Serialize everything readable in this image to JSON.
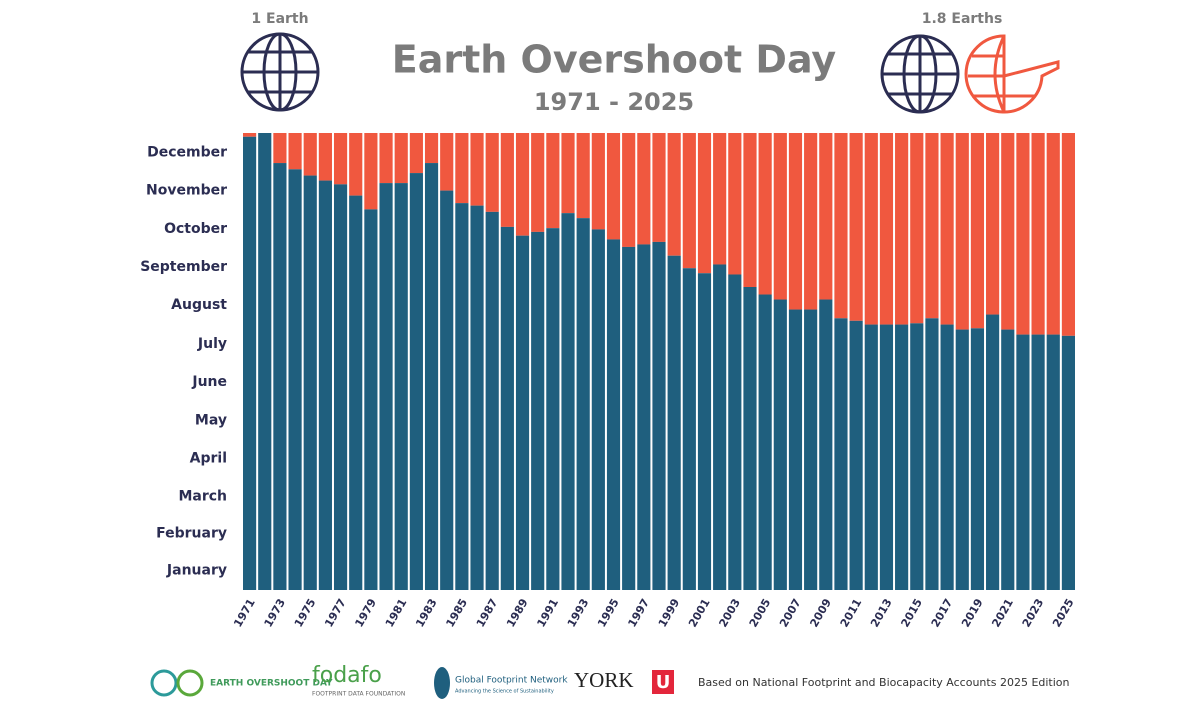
{
  "chart_data": {
    "type": "bar",
    "title": "Earth Overshoot Day",
    "subtitle": "1971 - 2025",
    "left_label": "1 Earth",
    "right_label": "1.8 Earths",
    "categories": [
      "1971",
      null,
      "1973",
      null,
      "1975",
      null,
      "1977",
      null,
      "1979",
      null,
      "1981",
      null,
      "1983",
      null,
      "1985",
      null,
      "1987",
      null,
      "1989",
      null,
      "1991",
      null,
      "1993",
      null,
      "1995",
      null,
      "1997",
      null,
      "1999",
      null,
      "2001",
      null,
      "2003",
      null,
      "2005",
      null,
      "2007",
      null,
      "2009",
      null,
      "2011",
      null,
      "2013",
      null,
      "2015",
      null,
      "2017",
      null,
      "2019",
      null,
      "2021",
      null,
      "2023",
      null,
      "2025"
    ],
    "values": [
      362,
      365,
      341,
      336,
      331,
      327,
      324,
      315,
      304,
      325,
      325,
      333,
      341,
      319,
      309,
      307,
      302,
      290,
      283,
      286,
      289,
      301,
      297,
      288,
      280,
      274,
      276,
      278,
      267,
      257,
      253,
      260,
      252,
      242,
      236,
      232,
      224,
      224,
      232,
      217,
      215,
      212,
      212,
      212,
      213,
      217,
      212,
      208,
      209,
      220,
      208,
      204,
      204,
      204,
      203
    ],
    "color": "#1f5f7e",
    "remainder_color": "#f0583f",
    "ylim": [
      0,
      365
    ],
    "yticks": [
      {
        "value": 15.5,
        "label": "January"
      },
      {
        "value": 45,
        "label": "February"
      },
      {
        "value": 74.5,
        "label": "March"
      },
      {
        "value": 105,
        "label": "April"
      },
      {
        "value": 135.5,
        "label": "May"
      },
      {
        "value": 166,
        "label": "June"
      },
      {
        "value": 196.5,
        "label": "July"
      },
      {
        "value": 227.5,
        "label": "August"
      },
      {
        "value": 258,
        "label": "September"
      },
      {
        "value": 288.5,
        "label": "October"
      },
      {
        "value": 319,
        "label": "November"
      },
      {
        "value": 349.5,
        "label": "December"
      }
    ],
    "footer": {
      "eod_logo": "EARTH OVERSHOOT DAY",
      "fodafo": "fodafo",
      "fodafo_sub": "FOOTPRINT DATA FOUNDATION",
      "gfn": "Global Footprint Network",
      "gfn_sub": "Advancing the Science of Sustainability",
      "york": "YORK",
      "york_u": "U",
      "note": "Based on National Footprint and Biocapacity Accounts 2025 Edition"
    }
  }
}
